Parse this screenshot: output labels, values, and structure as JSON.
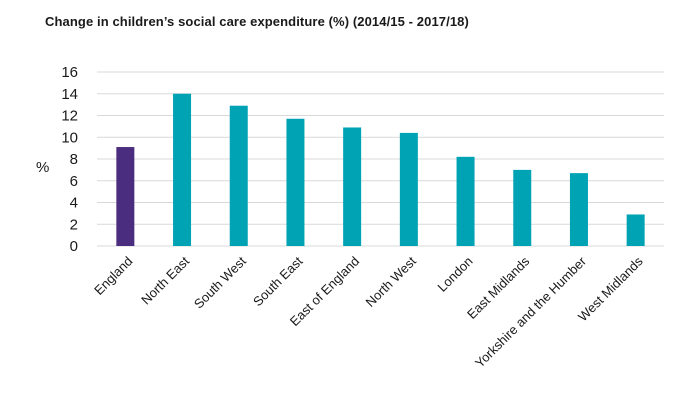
{
  "chart_data": {
    "type": "bar",
    "title": "Change in children’s social care expenditure (%) (2014/15 - 2017/18)",
    "xlabel": "",
    "ylabel": "%",
    "ylim": [
      0,
      16
    ],
    "yticks": [
      0,
      2,
      4,
      6,
      8,
      10,
      12,
      14,
      16
    ],
    "grid": true,
    "legend": "none",
    "categories": [
      "England",
      "North East",
      "South West",
      "South East",
      "East of England",
      "North West",
      "London",
      "East Midlands",
      "Yorkshire and the Humber",
      "West Midlands"
    ],
    "values": [
      9.1,
      14.0,
      12.9,
      11.7,
      10.9,
      10.4,
      8.2,
      7.0,
      6.7,
      2.9
    ],
    "highlight_category": "England",
    "colors": {
      "highlight": "#4b2d80",
      "bar": "#00a3b4",
      "grid": "#d9d9d9",
      "text": "#1a1a1a"
    }
  }
}
